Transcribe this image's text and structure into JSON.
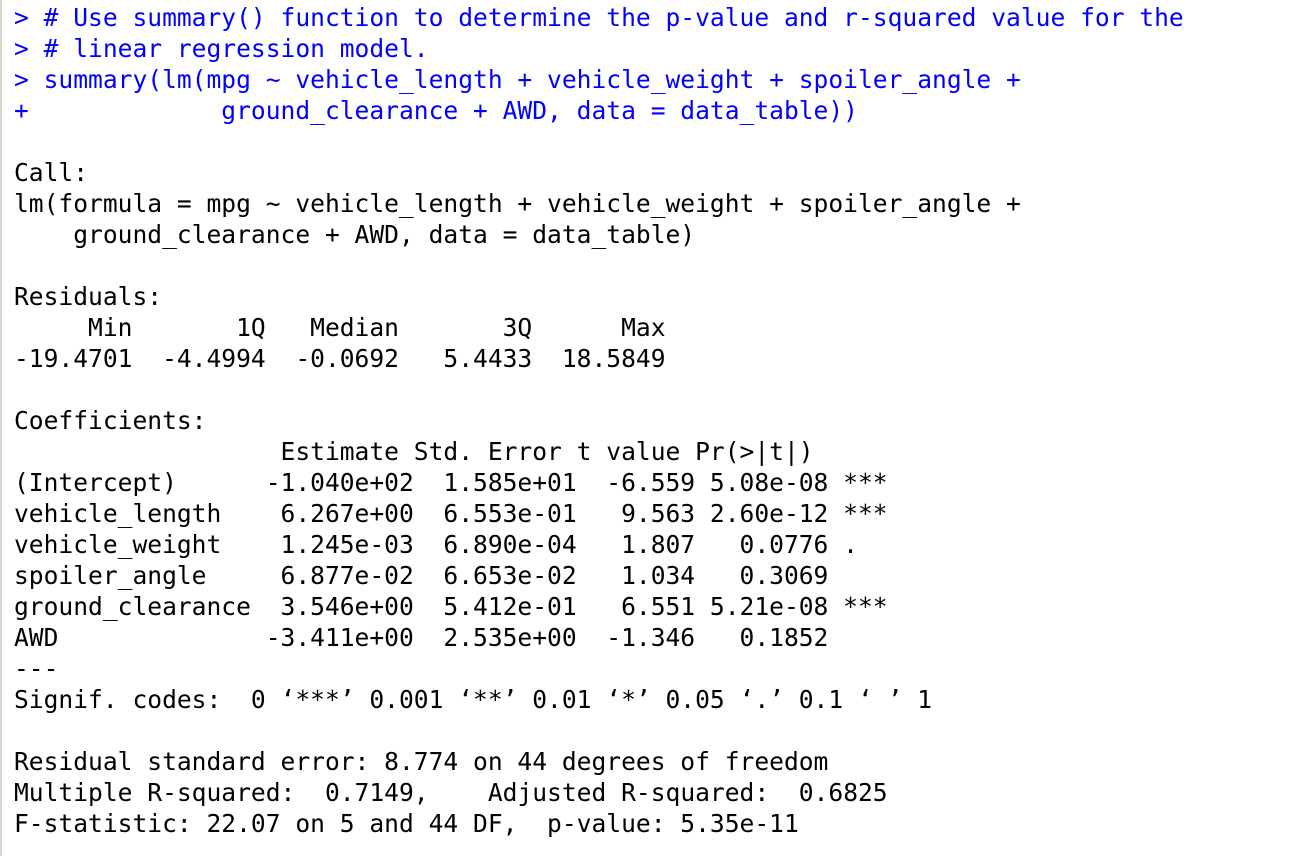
{
  "console": {
    "lines": [
      {
        "kind": "in",
        "text": "> # Use summary() function to determine the p-value and r-squared value for the"
      },
      {
        "kind": "in",
        "text": "> # linear regression model."
      },
      {
        "kind": "in",
        "text": "> summary(lm(mpg ~ vehicle_length + vehicle_weight + spoiler_angle +"
      },
      {
        "kind": "in",
        "text": "+             ground_clearance + AWD, data = data_table))"
      },
      {
        "kind": "out",
        "text": ""
      },
      {
        "kind": "out",
        "text": "Call:"
      },
      {
        "kind": "out",
        "text": "lm(formula = mpg ~ vehicle_length + vehicle_weight + spoiler_angle +"
      },
      {
        "kind": "out",
        "text": "    ground_clearance + AWD, data = data_table)"
      },
      {
        "kind": "out",
        "text": ""
      },
      {
        "kind": "out",
        "text": "Residuals:"
      },
      {
        "kind": "out",
        "text": "     Min       1Q   Median       3Q      Max "
      },
      {
        "kind": "out",
        "text": "-19.4701  -4.4994  -0.0692   5.4433  18.5849 "
      },
      {
        "kind": "out",
        "text": ""
      },
      {
        "kind": "out",
        "text": "Coefficients:"
      },
      {
        "kind": "out",
        "text": "                  Estimate Std. Error t value Pr(>|t|)    "
      },
      {
        "kind": "out",
        "text": "(Intercept)      -1.040e+02  1.585e+01  -6.559 5.08e-08 ***"
      },
      {
        "kind": "out",
        "text": "vehicle_length    6.267e+00  6.553e-01   9.563 2.60e-12 ***"
      },
      {
        "kind": "out",
        "text": "vehicle_weight    1.245e-03  6.890e-04   1.807   0.0776 .  "
      },
      {
        "kind": "out",
        "text": "spoiler_angle     6.877e-02  6.653e-02   1.034   0.3069    "
      },
      {
        "kind": "out",
        "text": "ground_clearance  3.546e+00  5.412e-01   6.551 5.21e-08 ***"
      },
      {
        "kind": "out",
        "text": "AWD              -3.411e+00  2.535e+00  -1.346   0.1852    "
      },
      {
        "kind": "out",
        "text": "---"
      },
      {
        "kind": "out",
        "text": "Signif. codes:  0 ‘***’ 0.001 ‘**’ 0.01 ‘*’ 0.05 ‘.’ 0.1 ‘ ’ 1"
      },
      {
        "kind": "out",
        "text": ""
      },
      {
        "kind": "out",
        "text": "Residual standard error: 8.774 on 44 degrees of freedom"
      },
      {
        "kind": "out",
        "text": "Multiple R-squared:  0.7149,\tAdjusted R-squared:  0.6825 "
      },
      {
        "kind": "out",
        "text": "F-statistic: 22.07 on 5 and 44 DF,  p-value: 5.35e-11"
      }
    ]
  },
  "colors": {
    "input": "#0000ff",
    "output": "#000000",
    "background": "#ffffff"
  }
}
